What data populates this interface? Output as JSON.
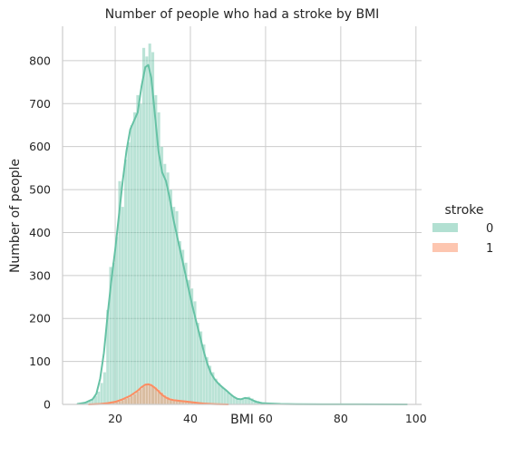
{
  "chart_data": {
    "type": "histogram",
    "title": "Number of people who had a stroke by BMI",
    "xlabel": "BMI",
    "ylabel": "Number of people",
    "xlim": [
      6,
      101.5
    ],
    "ylim": [
      0,
      880
    ],
    "xticks": [
      20,
      40,
      60,
      80,
      100
    ],
    "yticks": [
      0,
      100,
      200,
      300,
      400,
      500,
      600,
      700,
      800
    ],
    "grid": true,
    "legend": {
      "title": "stroke",
      "placement": "right",
      "entries": [
        "0",
        "1"
      ]
    },
    "bin_width": 0.8,
    "series": [
      {
        "name": "0",
        "color": "#66c2a5",
        "bins": [
          [
            10.4,
            2
          ],
          [
            11.2,
            3
          ],
          [
            12.0,
            5
          ],
          [
            12.8,
            8
          ],
          [
            13.6,
            12
          ],
          [
            14.4,
            20
          ],
          [
            15.2,
            30
          ],
          [
            16.0,
            50
          ],
          [
            16.8,
            75
          ],
          [
            17.6,
            220
          ],
          [
            18.4,
            320
          ],
          [
            19.2,
            330
          ],
          [
            20.0,
            390
          ],
          [
            20.8,
            520
          ],
          [
            21.6,
            460
          ],
          [
            22.4,
            570
          ],
          [
            23.2,
            610
          ],
          [
            24.0,
            650
          ],
          [
            24.8,
            680
          ],
          [
            25.6,
            720
          ],
          [
            26.4,
            700
          ],
          [
            27.2,
            830
          ],
          [
            28.0,
            810
          ],
          [
            28.8,
            840
          ],
          [
            29.6,
            820
          ],
          [
            30.4,
            720
          ],
          [
            31.2,
            680
          ],
          [
            32.0,
            600
          ],
          [
            32.8,
            560
          ],
          [
            33.6,
            540
          ],
          [
            34.4,
            500
          ],
          [
            35.2,
            460
          ],
          [
            36.0,
            450
          ],
          [
            36.8,
            380
          ],
          [
            37.6,
            360
          ],
          [
            38.4,
            330
          ],
          [
            39.2,
            290
          ],
          [
            40.0,
            270
          ],
          [
            40.8,
            240
          ],
          [
            41.6,
            190
          ],
          [
            42.4,
            170
          ],
          [
            43.2,
            140
          ],
          [
            44.0,
            110
          ],
          [
            44.8,
            90
          ],
          [
            45.6,
            75
          ],
          [
            46.4,
            60
          ],
          [
            47.2,
            50
          ],
          [
            48.0,
            42
          ],
          [
            48.8,
            35
          ],
          [
            49.6,
            28
          ],
          [
            50.4,
            22
          ],
          [
            51.2,
            18
          ],
          [
            52.0,
            15
          ],
          [
            52.8,
            12
          ],
          [
            53.6,
            12
          ],
          [
            54.4,
            16
          ],
          [
            55.2,
            18
          ],
          [
            56.0,
            14
          ],
          [
            56.8,
            10
          ],
          [
            57.6,
            8
          ],
          [
            58.4,
            6
          ],
          [
            59.2,
            5
          ],
          [
            60.0,
            4
          ],
          [
            60.8,
            3
          ],
          [
            61.6,
            3
          ],
          [
            62.4,
            2
          ],
          [
            63.2,
            2
          ],
          [
            64.0,
            2
          ],
          [
            64.8,
            1
          ],
          [
            65.6,
            1
          ],
          [
            66.4,
            1
          ],
          [
            67.2,
            1
          ],
          [
            68.0,
            1
          ],
          [
            70.0,
            1
          ],
          [
            72.0,
            1
          ],
          [
            75.0,
            1
          ],
          [
            78.0,
            1
          ],
          [
            83.0,
            1
          ],
          [
            88.0,
            1
          ],
          [
            97.6,
            1
          ]
        ],
        "kde": [
          [
            10,
            1
          ],
          [
            12,
            4
          ],
          [
            14,
            12
          ],
          [
            15,
            25
          ],
          [
            16,
            60
          ],
          [
            17,
            120
          ],
          [
            18,
            210
          ],
          [
            19,
            290
          ],
          [
            20,
            360
          ],
          [
            21,
            440
          ],
          [
            22,
            520
          ],
          [
            23,
            590
          ],
          [
            24,
            640
          ],
          [
            25,
            660
          ],
          [
            26,
            680
          ],
          [
            27,
            740
          ],
          [
            28,
            785
          ],
          [
            28.8,
            790
          ],
          [
            29.6,
            760
          ],
          [
            30.5,
            680
          ],
          [
            31.5,
            590
          ],
          [
            32.5,
            540
          ],
          [
            33.5,
            520
          ],
          [
            34.5,
            480
          ],
          [
            35.5,
            430
          ],
          [
            36.5,
            390
          ],
          [
            37.5,
            350
          ],
          [
            38.5,
            310
          ],
          [
            39.5,
            270
          ],
          [
            40.5,
            230
          ],
          [
            41.5,
            195
          ],
          [
            42.5,
            160
          ],
          [
            43.5,
            125
          ],
          [
            44.5,
            95
          ],
          [
            45.5,
            72
          ],
          [
            46.5,
            58
          ],
          [
            47.5,
            48
          ],
          [
            48.5,
            40
          ],
          [
            49.5,
            33
          ],
          [
            50.5,
            25
          ],
          [
            51.5,
            18
          ],
          [
            52.5,
            13
          ],
          [
            53.5,
            12
          ],
          [
            54.5,
            15
          ],
          [
            55.5,
            14
          ],
          [
            56.5,
            10
          ],
          [
            57.5,
            6
          ],
          [
            59,
            3
          ],
          [
            61,
            2
          ],
          [
            64,
            1
          ],
          [
            68,
            0.5
          ],
          [
            75,
            0.3
          ],
          [
            85,
            0.2
          ],
          [
            97.6,
            0.1
          ]
        ]
      },
      {
        "name": "1",
        "color": "#fc8d62",
        "bins": [
          [
            17.6,
            2
          ],
          [
            18.4,
            3
          ],
          [
            19.2,
            4
          ],
          [
            20.0,
            6
          ],
          [
            20.8,
            8
          ],
          [
            21.6,
            10
          ],
          [
            22.4,
            13
          ],
          [
            23.2,
            16
          ],
          [
            24.0,
            20
          ],
          [
            24.8,
            24
          ],
          [
            25.6,
            30
          ],
          [
            26.4,
            36
          ],
          [
            27.2,
            42
          ],
          [
            28.0,
            46
          ],
          [
            28.8,
            48
          ],
          [
            29.6,
            44
          ],
          [
            30.4,
            40
          ],
          [
            31.2,
            34
          ],
          [
            32.0,
            28
          ],
          [
            32.8,
            22
          ],
          [
            33.6,
            18
          ],
          [
            34.4,
            14
          ],
          [
            35.2,
            12
          ],
          [
            36.0,
            10
          ],
          [
            36.8,
            9
          ],
          [
            37.6,
            8
          ],
          [
            38.4,
            7
          ],
          [
            39.2,
            6
          ],
          [
            40.0,
            5
          ],
          [
            40.8,
            4
          ],
          [
            41.6,
            3
          ],
          [
            42.4,
            3
          ],
          [
            43.2,
            2
          ],
          [
            44.0,
            2
          ],
          [
            44.8,
            1
          ],
          [
            45.6,
            1
          ]
        ],
        "kde": [
          [
            13,
            0
          ],
          [
            16,
            1
          ],
          [
            18,
            3
          ],
          [
            20,
            6
          ],
          [
            22,
            12
          ],
          [
            24,
            20
          ],
          [
            25,
            26
          ],
          [
            26,
            32
          ],
          [
            27,
            40
          ],
          [
            28,
            46
          ],
          [
            28.8,
            47
          ],
          [
            29.6,
            45
          ],
          [
            30.5,
            39
          ],
          [
            31.5,
            31
          ],
          [
            32.5,
            22
          ],
          [
            33.5,
            16
          ],
          [
            34.5,
            12
          ],
          [
            35.5,
            10
          ],
          [
            36.5,
            9
          ],
          [
            37.5,
            8
          ],
          [
            38.5,
            7
          ],
          [
            39.5,
            6
          ],
          [
            40.5,
            5
          ],
          [
            41.5,
            4
          ],
          [
            42.5,
            3
          ],
          [
            43.5,
            2
          ],
          [
            44.5,
            1.5
          ],
          [
            45.5,
            1
          ],
          [
            47,
            0.5
          ],
          [
            50,
            0
          ]
        ]
      }
    ]
  }
}
